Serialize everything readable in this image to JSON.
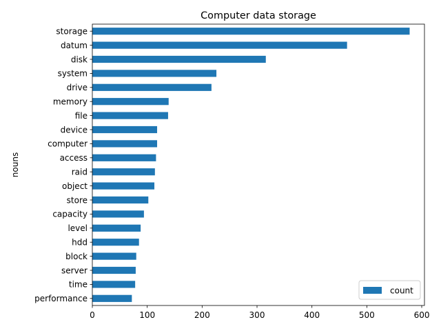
{
  "chart_data": {
    "type": "bar",
    "orientation": "horizontal",
    "title": "Computer data storage",
    "xlabel": "",
    "ylabel": "nouns",
    "xlim": [
      0,
      605
    ],
    "xticks": [
      0,
      100,
      200,
      300,
      400,
      500,
      600
    ],
    "grid": false,
    "legend_position": "lower right",
    "series": [
      {
        "name": "count",
        "color": "#1f77b4",
        "categories": [
          "storage",
          "datum",
          "disk",
          "system",
          "drive",
          "memory",
          "file",
          "device",
          "computer",
          "access",
          "raid",
          "object",
          "store",
          "capacity",
          "level",
          "hdd",
          "block",
          "server",
          "time",
          "performance"
        ],
        "values": [
          578,
          464,
          316,
          226,
          217,
          139,
          138,
          118,
          118,
          116,
          114,
          113,
          102,
          94,
          88,
          85,
          80,
          79,
          78,
          72
        ]
      }
    ]
  }
}
